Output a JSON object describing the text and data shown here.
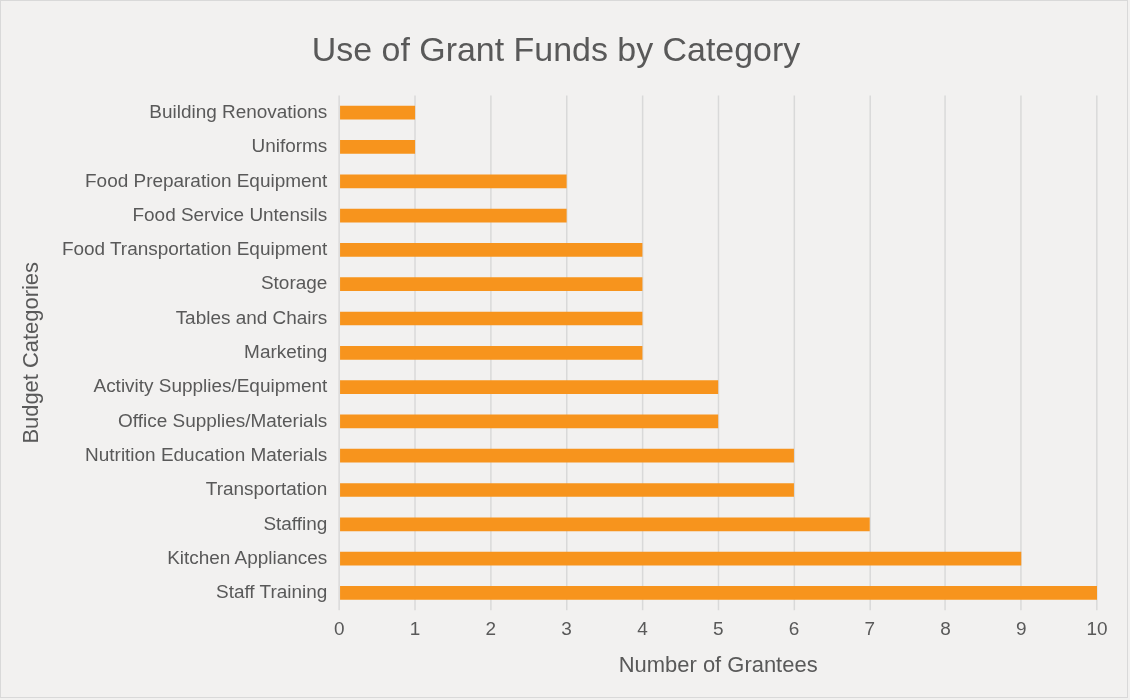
{
  "chart_data": {
    "type": "bar",
    "orientation": "horizontal",
    "title": "Use of Grant Funds by Category",
    "xlabel": "Number of Grantees",
    "ylabel": "Budget Categories",
    "categories": [
      "Building Renovations",
      "Uniforms",
      "Food Preparation Equipment",
      "Food Service Untensils",
      "Food Transportation Equipment",
      "Storage",
      "Tables and Chairs",
      "Marketing",
      "Activity Supplies/Equipment",
      "Office Supplies/Materials",
      "Nutrition Education Materials",
      "Transportation",
      "Staffing",
      "Kitchen Appliances",
      "Staff Training"
    ],
    "values": [
      1,
      1,
      3,
      3,
      4,
      4,
      4,
      4,
      5,
      5,
      6,
      6,
      7,
      9,
      10
    ],
    "color": "#f7941d",
    "xlim": [
      0,
      10
    ],
    "xticks": [
      0,
      1,
      2,
      3,
      4,
      5,
      6,
      7,
      8,
      9,
      10
    ],
    "grid": "x",
    "legend": false
  }
}
